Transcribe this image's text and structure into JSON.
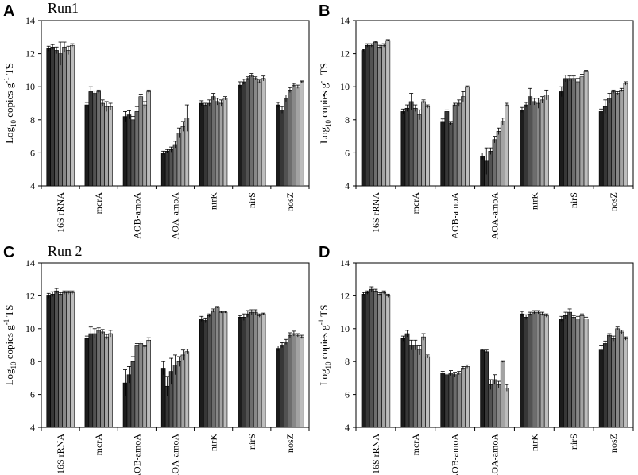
{
  "chart_data": [
    {
      "panel": "A",
      "type": "bar",
      "title": "Run1",
      "ylabel_main": "Log",
      "ylabel_sub": "10",
      "ylabel_mid": " copies g",
      "ylabel_sup": "-1",
      "ylabel_end": " TS",
      "ylim": [
        4,
        14
      ],
      "yticks": [
        "4",
        "6",
        "8",
        "10",
        "12",
        "14"
      ],
      "categories": [
        "16S rRNA",
        "mcrA",
        "AOB-amoA",
        "AOA-amoA",
        "nirK",
        "nirS",
        "nosZ"
      ],
      "values": [
        [
          12.3,
          12.4,
          12.2,
          12.0,
          12.4,
          12.2,
          12.5
        ],
        [
          8.9,
          9.7,
          9.6,
          9.7,
          9.0,
          8.8,
          8.8
        ],
        [
          8.2,
          8.3,
          8.0,
          8.5,
          9.4,
          8.9,
          9.7
        ],
        [
          6.0,
          6.1,
          6.2,
          6.5,
          7.2,
          7.6,
          8.1
        ],
        [
          9.0,
          8.9,
          9.0,
          9.4,
          9.1,
          9.0,
          9.3
        ],
        [
          10.1,
          10.3,
          10.5,
          10.7,
          10.5,
          10.3,
          10.5
        ],
        [
          8.9,
          8.6,
          9.3,
          9.8,
          10.1,
          10.0,
          10.3
        ]
      ],
      "errors": [
        [
          0.15,
          0.15,
          0.2,
          0.7,
          0.3,
          0.25,
          0.1
        ],
        [
          0.15,
          0.3,
          0.15,
          0.1,
          0.2,
          0.3,
          0.2
        ],
        [
          0.3,
          0.25,
          0.2,
          0.3,
          0.15,
          0.2,
          0.1
        ],
        [
          0.1,
          0.1,
          0.15,
          0.2,
          0.3,
          0.3,
          0.8
        ],
        [
          0.15,
          0.1,
          0.2,
          0.2,
          0.2,
          0.2,
          0.1
        ],
        [
          0.2,
          0.15,
          0.1,
          0.1,
          0.1,
          0.1,
          0.15
        ],
        [
          0.15,
          0.2,
          0.2,
          0.15,
          0.1,
          0.1,
          0.05
        ]
      ]
    },
    {
      "panel": "B",
      "type": "bar",
      "title": "",
      "ylabel_main": "Log",
      "ylabel_sub": "10",
      "ylabel_mid": " copies g",
      "ylabel_sup": "-1",
      "ylabel_end": " TS",
      "ylim": [
        4,
        14
      ],
      "yticks": [
        "4",
        "6",
        "8",
        "10",
        "12",
        "14"
      ],
      "categories": [
        "16S rRNA",
        "mcrA",
        "AOB-amoA",
        "AOA-amoA",
        "nirK",
        "nirS",
        "nosZ"
      ],
      "values": [
        [
          12.2,
          12.5,
          12.5,
          12.7,
          12.4,
          12.5,
          12.8
        ],
        [
          8.5,
          8.7,
          9.1,
          8.7,
          8.3,
          9.1,
          8.8
        ],
        [
          7.9,
          8.5,
          7.8,
          8.9,
          9.0,
          9.4,
          10.0
        ],
        [
          5.8,
          5.5,
          6.1,
          6.8,
          7.3,
          7.9,
          8.9
        ],
        [
          8.6,
          8.9,
          9.4,
          9.1,
          9.0,
          9.2,
          9.5
        ],
        [
          9.7,
          10.5,
          10.5,
          10.5,
          10.3,
          10.6,
          10.9
        ],
        [
          8.5,
          8.8,
          9.3,
          9.7,
          9.6,
          9.8,
          10.2
        ]
      ],
      "errors": [
        [
          0.05,
          0.1,
          0.1,
          0.05,
          0.1,
          0.1,
          0.05
        ],
        [
          0.15,
          0.2,
          0.5,
          0.2,
          0.3,
          0.1,
          0.1
        ],
        [
          0.15,
          0.1,
          0.1,
          0.1,
          0.2,
          0.3,
          0.05
        ],
        [
          0.2,
          0.8,
          0.2,
          0.2,
          0.2,
          0.2,
          0.1
        ],
        [
          0.15,
          0.15,
          0.5,
          0.2,
          0.3,
          0.2,
          0.3
        ],
        [
          0.3,
          0.2,
          0.15,
          0.15,
          0.2,
          0.15,
          0.1
        ],
        [
          0.15,
          0.4,
          0.3,
          0.1,
          0.1,
          0.1,
          0.1
        ]
      ]
    },
    {
      "panel": "C",
      "type": "bar",
      "title": "Run 2",
      "ylabel_main": "Log",
      "ylabel_sub": "10",
      "ylabel_mid": " copies g",
      "ylabel_sup": "-1",
      "ylabel_end": " TS",
      "ylim": [
        4,
        14
      ],
      "yticks": [
        "4",
        "6",
        "8",
        "10",
        "12",
        "14"
      ],
      "categories": [
        "16S rRNA",
        "mcrA",
        "AOB-amoA",
        "AOA-amoA",
        "nirK",
        "nirS",
        "nosZ"
      ],
      "values": [
        [
          12.0,
          12.1,
          12.3,
          12.1,
          12.2,
          12.2,
          12.2
        ],
        [
          9.4,
          9.7,
          9.7,
          9.9,
          9.8,
          9.5,
          9.7
        ],
        [
          6.7,
          7.2,
          8.0,
          9.0,
          9.1,
          8.9,
          9.3
        ],
        [
          7.6,
          6.5,
          7.4,
          7.8,
          8.0,
          8.4,
          8.6
        ],
        [
          10.6,
          10.5,
          10.8,
          11.1,
          11.3,
          11.0,
          11.0
        ],
        [
          10.7,
          10.7,
          10.9,
          11.0,
          11.0,
          10.8,
          10.9
        ],
        [
          8.8,
          9.0,
          9.2,
          9.6,
          9.7,
          9.6,
          9.5
        ]
      ],
      "errors": [
        [
          0.15,
          0.15,
          0.15,
          0.1,
          0.1,
          0.1,
          0.1
        ],
        [
          0.15,
          0.4,
          0.3,
          0.15,
          0.15,
          0.15,
          0.2
        ],
        [
          0.8,
          0.5,
          0.3,
          0.1,
          0.1,
          0.1,
          0.15
        ],
        [
          0.4,
          0.6,
          0.8,
          0.6,
          0.3,
          0.3,
          0.15
        ],
        [
          0.15,
          0.15,
          0.1,
          0.1,
          0.05,
          0.05,
          0.05
        ],
        [
          0.1,
          0.2,
          0.2,
          0.15,
          0.15,
          0.1,
          0.05
        ],
        [
          0.15,
          0.15,
          0.15,
          0.15,
          0.15,
          0.1,
          0.1
        ]
      ]
    },
    {
      "panel": "D",
      "type": "bar",
      "title": "",
      "ylabel_main": "Log",
      "ylabel_sub": "10",
      "ylabel_mid": " copies g",
      "ylabel_sup": "-1",
      "ylabel_end": " TS",
      "ylim": [
        4,
        14
      ],
      "yticks": [
        "4",
        "6",
        "8",
        "10",
        "12",
        "14"
      ],
      "categories": [
        "16S rRNA",
        "mcrA",
        "AOB-amoA",
        "AOA-amoA",
        "nirK",
        "nirS",
        "nosZ"
      ],
      "values": [
        [
          12.1,
          12.2,
          12.4,
          12.3,
          12.1,
          12.2,
          12.0
        ],
        [
          9.4,
          9.7,
          9.0,
          9.0,
          8.7,
          9.5,
          8.3
        ],
        [
          7.3,
          7.2,
          7.3,
          7.2,
          7.3,
          7.6,
          7.7
        ],
        [
          8.7,
          8.6,
          6.6,
          6.9,
          6.6,
          8.0,
          6.4
        ],
        [
          10.9,
          10.7,
          10.9,
          11.0,
          11.0,
          10.9,
          10.8
        ],
        [
          10.6,
          10.8,
          11.0,
          10.7,
          10.6,
          10.8,
          10.6
        ],
        [
          8.7,
          9.1,
          9.6,
          9.4,
          10.0,
          9.8,
          9.4
        ]
      ],
      "errors": [
        [
          0.1,
          0.1,
          0.15,
          0.1,
          0.1,
          0.1,
          0.1
        ],
        [
          0.15,
          0.2,
          0.3,
          0.3,
          0.3,
          0.2,
          0.1
        ],
        [
          0.1,
          0.1,
          0.15,
          0.15,
          0.1,
          0.1,
          0.1
        ],
        [
          0.05,
          0.1,
          0.3,
          0.3,
          0.2,
          0.05,
          0.2
        ],
        [
          0.15,
          0.15,
          0.1,
          0.1,
          0.1,
          0.1,
          0.1
        ],
        [
          0.15,
          0.2,
          0.2,
          0.1,
          0.15,
          0.1,
          0.1
        ],
        [
          0.3,
          0.15,
          0.1,
          0.15,
          0.1,
          0.1,
          0.1
        ]
      ]
    }
  ],
  "series_colors": [
    "#1c1c1c",
    "#373737",
    "#525252",
    "#6d6d6d",
    "#888888",
    "#a3a3a3",
    "#bdbdbd"
  ]
}
